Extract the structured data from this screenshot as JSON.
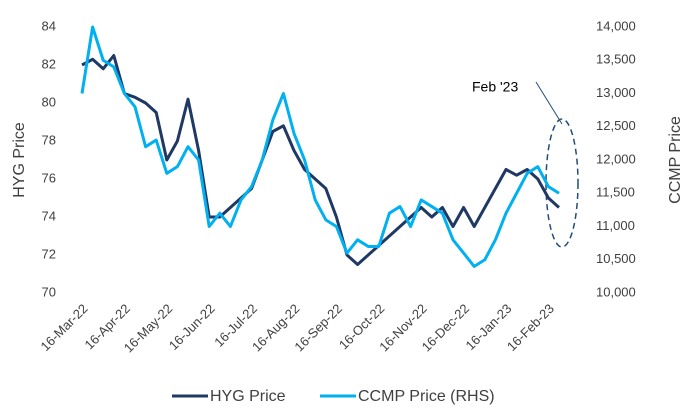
{
  "chart_data": {
    "type": "line",
    "y_label": "HYG Price",
    "y2_label": "CCMP Price",
    "annotation": "Feb '23",
    "categories": [
      "16-Mar-22",
      null,
      null,
      null,
      "16-Apr-22",
      null,
      null,
      null,
      "16-May-22",
      null,
      null,
      null,
      "16-Jun-22",
      null,
      null,
      null,
      "16-Jul-22",
      null,
      null,
      null,
      "16-Aug-22",
      null,
      null,
      null,
      "16-Sep-22",
      null,
      null,
      null,
      "16-Oct-22",
      null,
      null,
      null,
      "16-Nov-22",
      null,
      null,
      null,
      "16-Dec-22",
      null,
      null,
      null,
      "16-Jan-23",
      null,
      null,
      null,
      "16-Feb-23",
      null
    ],
    "series": [
      {
        "name": "HYG Price",
        "color": "#1f3864",
        "values": [
          82,
          82.3,
          81.8,
          82.5,
          80.5,
          80.3,
          80,
          79.5,
          77,
          78,
          80.2,
          77.5,
          74,
          74,
          74.5,
          75,
          75.5,
          77,
          78.5,
          78.8,
          77.5,
          76.5,
          76,
          75.5,
          74,
          72,
          71.5,
          72,
          72.5,
          73,
          73.5,
          74,
          74.5,
          74,
          74.5,
          73.5,
          74.5,
          73.5,
          74.5,
          75.5,
          76.5,
          76.2,
          76.5,
          76,
          75,
          74.5
        ]
      },
      {
        "name": "CCMP Price (RHS)",
        "color": "#00b0f0",
        "axis": "y2",
        "values": [
          13000,
          14000,
          13500,
          13400,
          13000,
          12800,
          12200,
          12300,
          11800,
          11900,
          12200,
          12000,
          11000,
          11200,
          11000,
          11400,
          11600,
          12000,
          12600,
          13000,
          12400,
          12000,
          11400,
          11100,
          11000,
          10600,
          10800,
          10700,
          10700,
          11200,
          11300,
          11000,
          11400,
          11300,
          11200,
          10800,
          10600,
          10400,
          10500,
          10800,
          11200,
          11500,
          11800,
          11900,
          11600,
          11500
        ]
      }
    ],
    "ylim": [
      70,
      84
    ],
    "yticks": [
      70,
      72,
      74,
      76,
      78,
      80,
      82,
      84
    ],
    "y2lim": [
      10000,
      14000
    ],
    "y2ticks": [
      {
        "value": 10000,
        "label": "10,000"
      },
      {
        "value": 10500,
        "label": "10,500"
      },
      {
        "value": 11000,
        "label": "11,000"
      },
      {
        "value": 11500,
        "label": "11,500"
      },
      {
        "value": 12000,
        "label": "12,000"
      },
      {
        "value": 12500,
        "label": "12,500"
      },
      {
        "value": 13000,
        "label": "13,000"
      },
      {
        "value": 13500,
        "label": "13,500"
      },
      {
        "value": 14000,
        "label": "14,000"
      }
    ],
    "grid": false,
    "legend": "bottom"
  }
}
